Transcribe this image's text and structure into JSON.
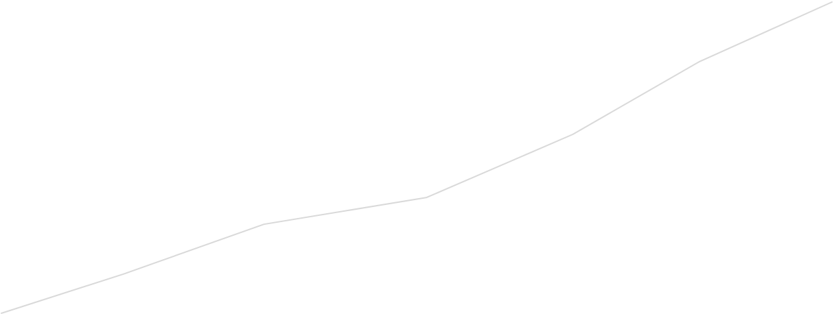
{
  "chart_data": {
    "type": "line",
    "title": "",
    "xlabel": "",
    "ylabel": "",
    "grid": false,
    "axes_visible": false,
    "legend": "none",
    "xlim": [
      0,
      100
    ],
    "ylim": [
      0,
      100
    ],
    "series": [
      {
        "color": "#d9d9d9",
        "x": [
          0,
          14.7,
          31.6,
          51.2,
          68.8,
          84.0,
          100
        ],
        "values": [
          0,
          12.6,
          28.6,
          37.2,
          57.5,
          80.8,
          100
        ]
      }
    ]
  }
}
